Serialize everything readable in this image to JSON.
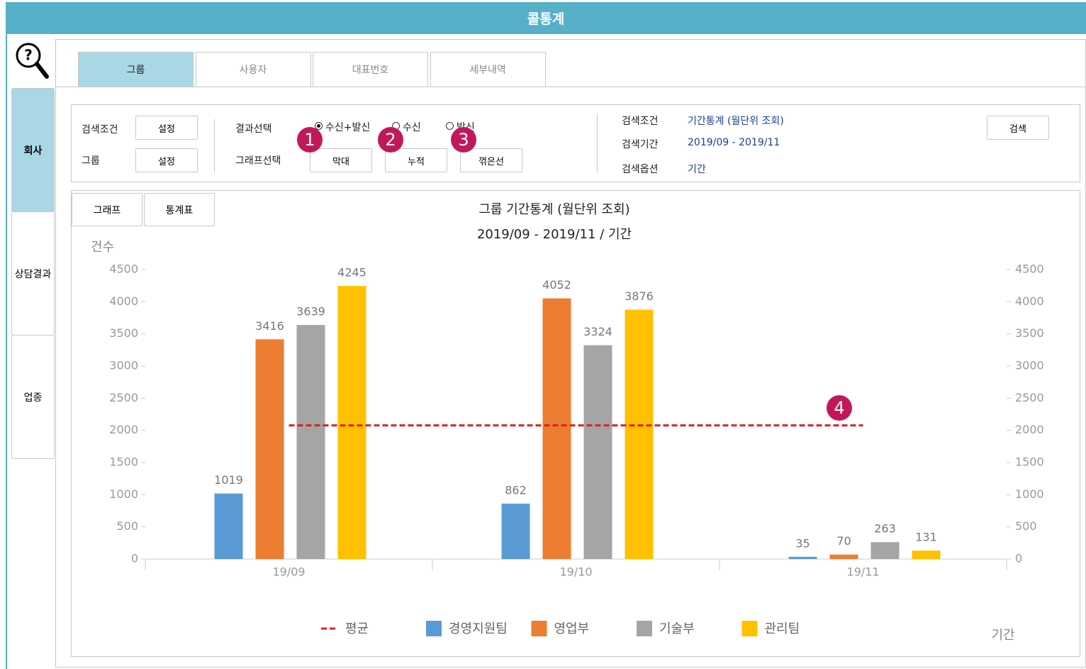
{
  "window": {
    "title": "콜통계"
  },
  "sidebar": {
    "tabs": [
      "회사",
      "상담결과",
      "업종"
    ]
  },
  "tabs": [
    "그룹",
    "사용자",
    "대표번호",
    "세부내역"
  ],
  "search": {
    "rows": [
      {
        "label": "검색조건",
        "button": "설정"
      },
      {
        "label": "그룹",
        "button": "설정"
      }
    ],
    "result": {
      "label": "결과선택",
      "options": [
        "수신+발신",
        "수신",
        "발신"
      ]
    },
    "graph": {
      "label": "그래프선택",
      "buttons": [
        "막대",
        "누적",
        "꺾은선"
      ]
    },
    "info": [
      {
        "label": "검색조건",
        "value": "기간통계 (월단위 조회)"
      },
      {
        "label": "검색기간",
        "value": "2019/09 - 2019/11"
      },
      {
        "label": "검색옵션",
        "value": "기간"
      }
    ],
    "button": "검색"
  },
  "view_tabs": [
    "그래프",
    "통계표"
  ],
  "markers": [
    "1",
    "2",
    "3",
    "4"
  ],
  "chart_data": {
    "type": "bar",
    "title": "그룹 기간통계 (월단위 조회)",
    "subtitle": "2019/09 - 2019/11 / 기간",
    "y_label": "건수",
    "x_label": "기간",
    "categories": [
      "19/09",
      "19/10",
      "19/11"
    ],
    "series": [
      {
        "name": "경영지원팀",
        "color": "#5b9bd5",
        "values": [
          1019,
          862,
          35
        ]
      },
      {
        "name": "영업부",
        "color": "#ed7d31",
        "values": [
          3416,
          4052,
          70
        ]
      },
      {
        "name": "기술부",
        "color": "#a5a5a5",
        "values": [
          3639,
          3324,
          263
        ]
      },
      {
        "name": "관리팀",
        "color": "#ffc000",
        "values": [
          4245,
          3876,
          131
        ]
      }
    ],
    "average": {
      "name": "평균",
      "color": "#e0201e",
      "values": [
        2078,
        2078,
        2078
      ]
    },
    "ylim": [
      0,
      4500
    ],
    "yticks": [
      0,
      500,
      1000,
      1500,
      2000,
      2500,
      3000,
      3500,
      4000,
      4500
    ],
    "grid": false
  }
}
